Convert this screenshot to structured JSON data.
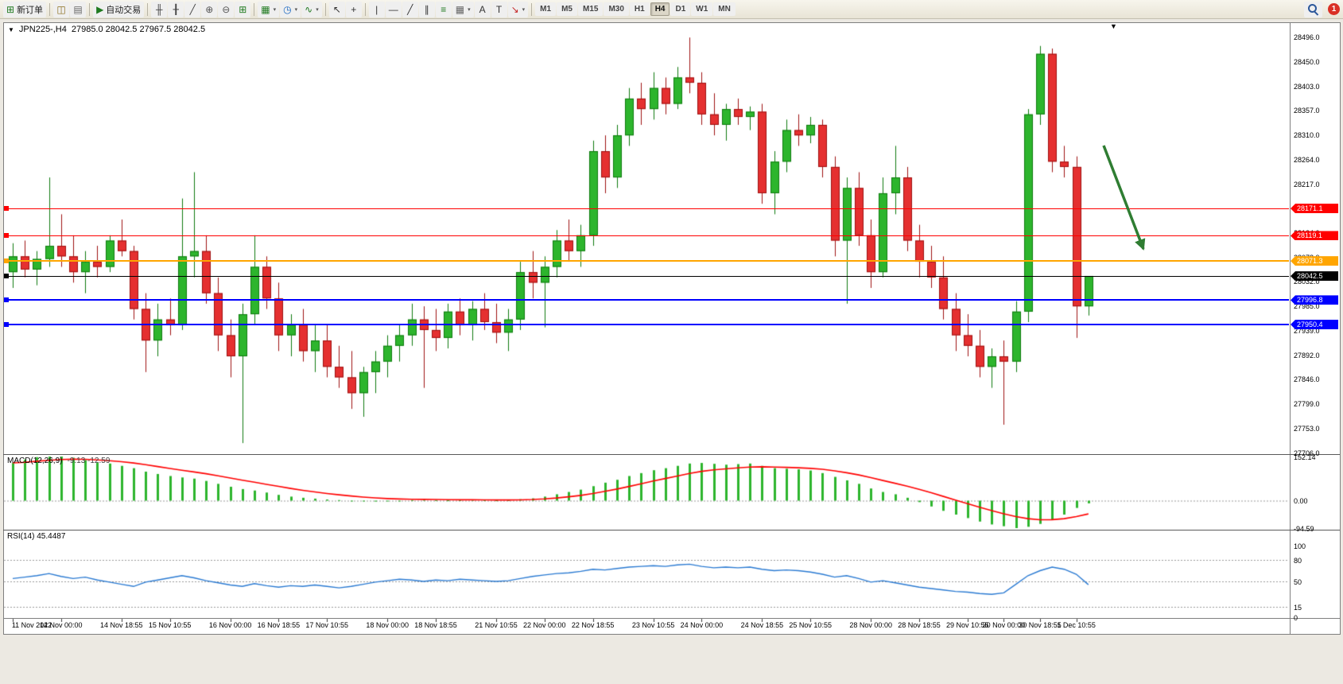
{
  "toolbar": {
    "items": [
      {
        "name": "new-order-button",
        "glyph": "⊞",
        "color": "#1F7A1F",
        "label": "新订单"
      },
      {
        "sep": true
      },
      {
        "name": "charts-window-button",
        "glyph": "◫",
        "color": "#8A6D1A"
      },
      {
        "name": "profiles-button",
        "glyph": "▤",
        "color": "#666666"
      },
      {
        "sep": true
      },
      {
        "name": "auto-trading-button",
        "glyph": "▶",
        "color": "#1F7A1F",
        "label": "自动交易"
      },
      {
        "sep": true
      },
      {
        "name": "bar-chart-button",
        "glyph": "╫",
        "color": "#444444"
      },
      {
        "name": "candlestick-chart-button",
        "glyph": "╂",
        "color": "#444444"
      },
      {
        "name": "line-chart-button",
        "glyph": "╱",
        "color": "#444444"
      },
      {
        "name": "zoom-in-button",
        "glyph": "⊕",
        "color": "#555555"
      },
      {
        "name": "zoom-out-button",
        "glyph": "⊖",
        "color": "#555555"
      },
      {
        "name": "tile-windows-button",
        "glyph": "⊞",
        "color": "#1F7A1F"
      },
      {
        "sep": true
      },
      {
        "name": "new-chart-button",
        "glyph": "▦",
        "color": "#1F7A1F",
        "caret": true
      },
      {
        "name": "period-menu-button",
        "glyph": "◷",
        "color": "#1565C0",
        "caret": true
      },
      {
        "name": "indicators-menu-button",
        "glyph": "∿",
        "color": "#1F7A1F",
        "caret": true
      },
      {
        "sep": true
      },
      {
        "name": "cursor-button",
        "glyph": "↖",
        "color": "#333333"
      },
      {
        "name": "crosshair-button",
        "glyph": "+",
        "color": "#333333"
      },
      {
        "sep": true
      },
      {
        "name": "vertical-line-button",
        "glyph": "|",
        "color": "#333333"
      },
      {
        "name": "horizontal-line-button",
        "glyph": "—",
        "color": "#333333"
      },
      {
        "name": "trendline-button",
        "glyph": "╱",
        "color": "#333333"
      },
      {
        "name": "equidistant-channel-button",
        "glyph": "∥",
        "color": "#333333"
      },
      {
        "name": "fibonacci-button",
        "glyph": "≡",
        "color": "#1F7A1F"
      },
      {
        "name": "shapes-button",
        "glyph": "▦",
        "color": "#666666",
        "caret": true
      },
      {
        "name": "text-button",
        "glyph": "A",
        "color": "#333333"
      },
      {
        "name": "text-label-button",
        "glyph": "T",
        "color": "#333333"
      },
      {
        "name": "arrows-button",
        "glyph": "↘",
        "color": "#C62828",
        "caret": true
      },
      {
        "sep": true
      }
    ],
    "timeframes": [
      "M1",
      "M5",
      "M15",
      "M30",
      "H1",
      "H4",
      "D1",
      "W1",
      "MN"
    ],
    "active_timeframe": "H4",
    "notification_badge": "1"
  },
  "chart": {
    "title": "JPN225-,H4",
    "ohlc": "27985.0 28042.5 27967.5 28042.5",
    "price_axis_labels": [
      "28496.0",
      "28450.0",
      "28403.0",
      "28357.0",
      "28310.0",
      "28264.0",
      "28217.0",
      "28171.0",
      "28124.0",
      "28078.0",
      "28032.0",
      "27985.0",
      "27939.0",
      "27892.0",
      "27846.0",
      "27799.0",
      "27753.0",
      "27706.0"
    ]
  },
  "levels": [
    {
      "name": "resistance-line-1",
      "price": 28171.1,
      "label": "28171.1",
      "color": "#FF0000",
      "width": 1
    },
    {
      "name": "resistance-line-2",
      "price": 28119.1,
      "label": "28119.1",
      "color": "#FF0000",
      "width": 1
    },
    {
      "name": "pivot-line",
      "price": 28071.3,
      "label": "28071.3",
      "color": "#FFA500",
      "width": 2
    },
    {
      "name": "current-price-line",
      "price": 28042.5,
      "label": "28042.5",
      "color": "#000000",
      "width": 1
    },
    {
      "name": "support-line-1",
      "price": 27996.8,
      "label": "27996.8",
      "color": "#0000FF",
      "width": 2
    },
    {
      "name": "support-line-2",
      "price": 27950.4,
      "label": "27950.4",
      "color": "#0000FF",
      "width": 2
    }
  ],
  "indicators": {
    "macd": {
      "label": "MACD(12,26,9)",
      "values_text": "-9.13 -12.59",
      "axis_labels": [
        "152.14",
        "0.00",
        "-94.59"
      ],
      "axis_values": [
        152.14,
        0,
        -94.59
      ],
      "range": [
        -94.59,
        152.14
      ]
    },
    "rsi": {
      "label": "RSI(14) 45.4487",
      "axis_labels": [
        "100",
        "80",
        "50",
        "15",
        "0"
      ],
      "axis_values": [
        100,
        80,
        50,
        15,
        0
      ],
      "levels": [
        80,
        50,
        15
      ]
    }
  },
  "annotations": {
    "arrow": {
      "name": "trend-arrow",
      "direction": "down-right",
      "color": "#2F7D32"
    }
  },
  "colors": {
    "up": "#2DB52D",
    "up_border": "#0E7A0E",
    "down": "#E53030",
    "down_border": "#9E1010",
    "macd_hist": "#2DB52D",
    "macd_signal": "#FF0000",
    "rsi_line": "#2A7AD2",
    "level_dash": "#999999"
  },
  "chart_data": {
    "type": "candlestick",
    "symbol": "JPN225-",
    "period": "H4",
    "title": "JPN225-,H4 27985.0 28042.5 27967.5 28042.5",
    "price_range": [
      27704,
      28525
    ],
    "candles": [
      [
        28050,
        28105,
        28020,
        28080
      ],
      [
        28080,
        28110,
        28040,
        28055
      ],
      [
        28055,
        28090,
        28025,
        28075
      ],
      [
        28075,
        28230,
        28060,
        28100
      ],
      [
        28100,
        28160,
        28060,
        28080
      ],
      [
        28080,
        28120,
        28030,
        28050
      ],
      [
        28050,
        28090,
        28010,
        28070
      ],
      [
        28070,
        28100,
        28040,
        28060
      ],
      [
        28060,
        28120,
        28050,
        28110
      ],
      [
        28110,
        28150,
        28080,
        28090
      ],
      [
        28090,
        28100,
        27960,
        27980
      ],
      [
        27980,
        28010,
        27860,
        27920
      ],
      [
        27920,
        27990,
        27890,
        27960
      ],
      [
        27960,
        28000,
        27930,
        27950
      ],
      [
        27950,
        28190,
        27940,
        28080
      ],
      [
        28080,
        28240,
        28040,
        28090
      ],
      [
        28090,
        28120,
        27990,
        28010
      ],
      [
        28010,
        28040,
        27900,
        27930
      ],
      [
        27930,
        27960,
        27850,
        27890
      ],
      [
        27890,
        27990,
        27725,
        27970
      ],
      [
        27970,
        28120,
        27950,
        28060
      ],
      [
        28060,
        28080,
        27980,
        28000
      ],
      [
        28000,
        28030,
        27900,
        27930
      ],
      [
        27930,
        27970,
        27890,
        27950
      ],
      [
        27950,
        27980,
        27880,
        27900
      ],
      [
        27900,
        27950,
        27860,
        27920
      ],
      [
        27920,
        27950,
        27850,
        27870
      ],
      [
        27870,
        27910,
        27830,
        27850
      ],
      [
        27850,
        27900,
        27790,
        27820
      ],
      [
        27820,
        27870,
        27775,
        27860
      ],
      [
        27860,
        27900,
        27820,
        27880
      ],
      [
        27880,
        27930,
        27850,
        27910
      ],
      [
        27910,
        27950,
        27880,
        27930
      ],
      [
        27930,
        27990,
        27910,
        27960
      ],
      [
        27960,
        27985,
        27830,
        27940
      ],
      [
        27940,
        27980,
        27900,
        27925
      ],
      [
        27925,
        27990,
        27905,
        27975
      ],
      [
        27975,
        28000,
        27930,
        27950
      ],
      [
        27950,
        27995,
        27920,
        27980
      ],
      [
        27980,
        28010,
        27940,
        27955
      ],
      [
        27955,
        27990,
        27915,
        27935
      ],
      [
        27935,
        27980,
        27900,
        27960
      ],
      [
        27960,
        28070,
        27940,
        28050
      ],
      [
        28050,
        28090,
        28000,
        28030
      ],
      [
        28030,
        28080,
        27945,
        28060
      ],
      [
        28060,
        28130,
        28040,
        28110
      ],
      [
        28110,
        28150,
        28070,
        28090
      ],
      [
        28090,
        28140,
        28060,
        28120
      ],
      [
        28120,
        28300,
        28100,
        28280
      ],
      [
        28280,
        28310,
        28200,
        28230
      ],
      [
        28230,
        28330,
        28210,
        28310
      ],
      [
        28310,
        28400,
        28290,
        28380
      ],
      [
        28380,
        28410,
        28330,
        28360
      ],
      [
        28360,
        28430,
        28340,
        28400
      ],
      [
        28400,
        28420,
        28350,
        28370
      ],
      [
        28370,
        28440,
        28360,
        28420
      ],
      [
        28420,
        28496,
        28390,
        28410
      ],
      [
        28410,
        28430,
        28330,
        28350
      ],
      [
        28350,
        28390,
        28310,
        28330
      ],
      [
        28330,
        28370,
        28300,
        28360
      ],
      [
        28360,
        28380,
        28330,
        28345
      ],
      [
        28345,
        28365,
        28320,
        28355
      ],
      [
        28355,
        28370,
        28180,
        28200
      ],
      [
        28200,
        28280,
        28160,
        28260
      ],
      [
        28260,
        28340,
        28240,
        28320
      ],
      [
        28320,
        28350,
        28290,
        28310
      ],
      [
        28310,
        28345,
        28295,
        28330
      ],
      [
        28330,
        28340,
        28230,
        28250
      ],
      [
        28250,
        28270,
        28080,
        28110
      ],
      [
        28110,
        28230,
        27990,
        28210
      ],
      [
        28210,
        28240,
        28100,
        28120
      ],
      [
        28120,
        28150,
        28020,
        28050
      ],
      [
        28050,
        28230,
        28040,
        28200
      ],
      [
        28200,
        28290,
        28160,
        28230
      ],
      [
        28230,
        28250,
        28090,
        28110
      ],
      [
        28110,
        28140,
        28040,
        28070
      ],
      [
        28070,
        28100,
        28020,
        28040
      ],
      [
        28040,
        28080,
        27960,
        27980
      ],
      [
        27980,
        28010,
        27900,
        27930
      ],
      [
        27930,
        27970,
        27890,
        27910
      ],
      [
        27910,
        27940,
        27850,
        27870
      ],
      [
        27870,
        27905,
        27830,
        27890
      ],
      [
        27890,
        27920,
        27760,
        27880
      ],
      [
        27880,
        27995,
        27860,
        27975
      ],
      [
        27975,
        28360,
        27955,
        28350
      ],
      [
        28350,
        28480,
        28330,
        28465
      ],
      [
        28465,
        28475,
        28240,
        28260
      ],
      [
        28260,
        28290,
        28230,
        28250
      ],
      [
        28250,
        28270,
        27925,
        27985
      ],
      [
        27985,
        28042.5,
        27967.5,
        28042.5
      ]
    ],
    "macd": [
      130,
      142,
      150,
      152.14,
      152,
      148,
      140,
      132,
      128,
      120,
      112,
      100,
      92,
      85,
      80,
      76,
      68,
      58,
      48,
      40,
      35,
      28,
      20,
      14,
      10,
      7,
      4,
      2,
      0,
      -2,
      -3,
      -2,
      0,
      2,
      3,
      2,
      1,
      2,
      3,
      2,
      1,
      2,
      5,
      8,
      14,
      22,
      30,
      38,
      50,
      62,
      72,
      85,
      95,
      105,
      112,
      120,
      128,
      130,
      127,
      124,
      126,
      128,
      120,
      112,
      110,
      108,
      104,
      95,
      82,
      70,
      58,
      42,
      30,
      22,
      10,
      -5,
      -20,
      -35,
      -48,
      -60,
      -72,
      -82,
      -88,
      -94.59,
      -90,
      -80,
      -65,
      -48,
      -25,
      -9.13
    ],
    "rsi": [
      54,
      56,
      58,
      61,
      57,
      54,
      56,
      52,
      49,
      46,
      43,
      49,
      52,
      55,
      58,
      55,
      51,
      48,
      45,
      43,
      47,
      44,
      42,
      44,
      43,
      45,
      43,
      41,
      43,
      46,
      49,
      51,
      53,
      52,
      50,
      52,
      51,
      53,
      52,
      51,
      50,
      51,
      54,
      57,
      59,
      61,
      62,
      64,
      67,
      66,
      68,
      70,
      71,
      72,
      71,
      73,
      74,
      71,
      69,
      70,
      69,
      70,
      67,
      65,
      66,
      65,
      63,
      60,
      56,
      58,
      54,
      49,
      51,
      48,
      45,
      42,
      40,
      38,
      36,
      35,
      33,
      32,
      34,
      46,
      58,
      65,
      70,
      67,
      60,
      45.45
    ],
    "time_labels": [
      {
        "text": "11 Nov 2022",
        "i": 0
      },
      {
        "text": "14 Nov 00:00",
        "i": 4
      },
      {
        "text": "14 Nov 18:55",
        "i": 9
      },
      {
        "text": "15 Nov 10:55",
        "i": 13
      },
      {
        "text": "16 Nov 00:00",
        "i": 18
      },
      {
        "text": "16 Nov 18:55",
        "i": 22
      },
      {
        "text": "17 Nov 10:55",
        "i": 26
      },
      {
        "text": "18 Nov 00:00",
        "i": 31
      },
      {
        "text": "18 Nov 18:55",
        "i": 35
      },
      {
        "text": "21 Nov 10:55",
        "i": 40
      },
      {
        "text": "22 Nov 00:00",
        "i": 44
      },
      {
        "text": "22 Nov 18:55",
        "i": 48
      },
      {
        "text": "23 Nov 10:55",
        "i": 53
      },
      {
        "text": "24 Nov 00:00",
        "i": 57
      },
      {
        "text": "24 Nov 18:55",
        "i": 62
      },
      {
        "text": "25 Nov 10:55",
        "i": 66
      },
      {
        "text": "28 Nov 00:00",
        "i": 71
      },
      {
        "text": "28 Nov 18:55",
        "i": 75
      },
      {
        "text": "29 Nov 10:55",
        "i": 79
      },
      {
        "text": "30 Nov 00:00",
        "i": 82
      },
      {
        "text": "30 Nov 18:55",
        "i": 85
      },
      {
        "text": "1 Dec 10:55",
        "i": 88
      }
    ]
  }
}
